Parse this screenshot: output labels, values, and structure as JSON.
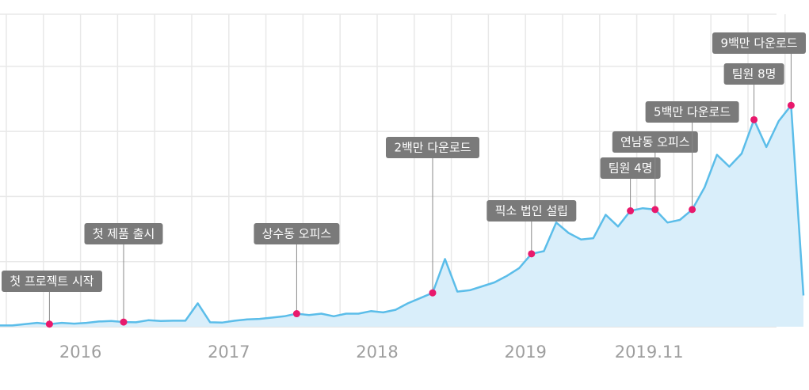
{
  "chart_data": {
    "type": "area",
    "x_tick_labels": [
      "2016",
      "2017",
      "2018",
      "2019",
      "2019.11"
    ],
    "x_ticks": [
      "2016-01",
      "2017-01",
      "2018-01",
      "2019-01",
      "2019-11"
    ],
    "x_start": "2015-07",
    "series": [
      {
        "points": [
          [
            "2015-07",
            0.5
          ],
          [
            "2015-08",
            0.5
          ],
          [
            "2015-09",
            1.0
          ],
          [
            "2015-10",
            1.5
          ],
          [
            "2015-11",
            1.0
          ],
          [
            "2015-12",
            1.5
          ],
          [
            "2016-01",
            1.2
          ],
          [
            "2016-02",
            1.5
          ],
          [
            "2016-03",
            2.0
          ],
          [
            "2016-04",
            2.2
          ],
          [
            "2016-05",
            1.8
          ],
          [
            "2016-06",
            1.7
          ],
          [
            "2016-07",
            2.5
          ],
          [
            "2016-08",
            2.2
          ],
          [
            "2016-09",
            2.3
          ],
          [
            "2016-10",
            2.3
          ],
          [
            "2016-11",
            9.0
          ],
          [
            "2016-12",
            1.7
          ],
          [
            "2017-01",
            1.6
          ],
          [
            "2017-02",
            2.3
          ],
          [
            "2017-03",
            2.8
          ],
          [
            "2017-04",
            3.0
          ],
          [
            "2017-05",
            3.5
          ],
          [
            "2017-06",
            4.0
          ],
          [
            "2017-07",
            5.0
          ],
          [
            "2017-08",
            4.5
          ],
          [
            "2017-09",
            5.0
          ],
          [
            "2017-10",
            4.0
          ],
          [
            "2017-11",
            5.0
          ],
          [
            "2017-12",
            5.0
          ],
          [
            "2018-01",
            6.0
          ],
          [
            "2018-02",
            5.5
          ],
          [
            "2018-03",
            6.5
          ],
          [
            "2018-04",
            9.0
          ],
          [
            "2018-05",
            11.0
          ],
          [
            "2018-06",
            13.0
          ],
          [
            "2018-07",
            26.0
          ],
          [
            "2018-08",
            13.5
          ],
          [
            "2018-09",
            14.0
          ],
          [
            "2018-10",
            15.5
          ],
          [
            "2018-11",
            17.0
          ],
          [
            "2018-12",
            19.5
          ],
          [
            "2019-01",
            22.5
          ],
          [
            "2019-02",
            28.0
          ],
          [
            "2019-03",
            29.0
          ],
          [
            "2019-04",
            40.0
          ],
          [
            "2019-05",
            36.0
          ],
          [
            "2019-06",
            33.5
          ],
          [
            "2019-07",
            34.0
          ],
          [
            "2019-08",
            43.0
          ],
          [
            "2019-09",
            38.5
          ],
          [
            "2019-10",
            44.5
          ],
          [
            "2019-11",
            45.5
          ],
          [
            "2019-12",
            45.0
          ],
          [
            "2020-01",
            40.0
          ],
          [
            "2020-02",
            41.0
          ],
          [
            "2020-03",
            45.0
          ],
          [
            "2020-04",
            53.5
          ],
          [
            "2020-05",
            66.0
          ],
          [
            "2020-06",
            61.5
          ],
          [
            "2020-07",
            66.5
          ],
          [
            "2020-08",
            79.5
          ],
          [
            "2020-09",
            69.0
          ],
          [
            "2020-10",
            79.0
          ],
          [
            "2020-11",
            85.0
          ],
          [
            "2020-12",
            12.0
          ]
        ]
      }
    ],
    "annotations": [
      {
        "label": "첫 프로젝트 시작",
        "x": "2015-11",
        "y": 1.0
      },
      {
        "label": "첫 제품 출시",
        "x": "2016-05",
        "y": 1.8
      },
      {
        "label": "상수동 오피스",
        "x": "2017-07",
        "y": 5.0
      },
      {
        "label": "2백만 다운로드",
        "x": "2018-06",
        "y": 13.0
      },
      {
        "label": "픽소 법인 설립",
        "x": "2019-02",
        "y": 28.0
      },
      {
        "label": "팀원 4명",
        "x": "2019-10",
        "y": 44.5
      },
      {
        "label": "연남동 오피스",
        "x": "2019-12",
        "y": 45.0
      },
      {
        "label": "5백만 다운로드",
        "x": "2020-03",
        "y": 45.0
      },
      {
        "label": "팀원 8명",
        "x": "2020-08",
        "y": 79.5
      },
      {
        "label": "9백만 다운로드",
        "x": "2020-11",
        "y": 85.0
      }
    ],
    "ylim": [
      0,
      120
    ],
    "grid": true,
    "colors": {
      "line": "#5bbde9",
      "fill": "#d9eefa",
      "marker": "#e8196c",
      "label_bg": "#7a7a7a",
      "label_text": "#ffffff",
      "grid": "#e8e8e8",
      "tick_text": "#9e9e9e"
    }
  }
}
